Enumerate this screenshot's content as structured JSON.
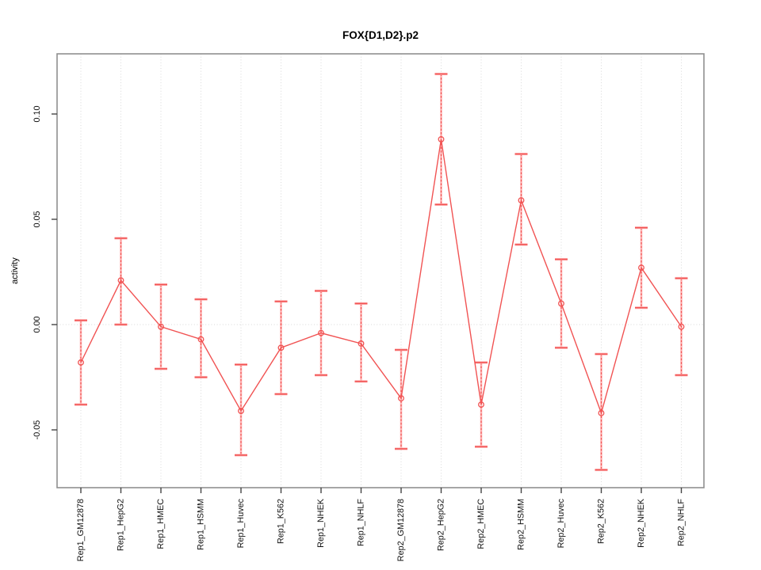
{
  "title": "FOX{D1,D2}.p2",
  "colors": {
    "series": "#f15353",
    "series_soft": "#ffb9b9",
    "grid": "#d8d8d8",
    "zero_line": "#d8d8d8",
    "box": "#8f8f8f",
    "tick": "#444444",
    "background": "#ffffff"
  },
  "chart_data": {
    "type": "line",
    "title": "FOX{D1,D2}.p2",
    "xlabel": "",
    "ylabel": "activity",
    "ylim": [
      -0.077,
      0.129
    ],
    "yticks": [
      0.1,
      0.05,
      0.0,
      -0.05
    ],
    "grid": "vertical dotted line at each category; horizontal dotted line at zero only",
    "legend_position": "none",
    "marker": "open-circle",
    "error_bars": true,
    "categories": [
      "Rep1_GM12878",
      "Rep1_HepG2",
      "Rep1_HMEC",
      "Rep1_HSMM",
      "Rep1_Huvec",
      "Rep1_K562",
      "Rep1_NHEK",
      "Rep1_NHLF",
      "Rep2_GM12878",
      "Rep2_HepG2",
      "Rep2_HMEC",
      "Rep2_HSMM",
      "Rep2_Huvec",
      "Rep2_K562",
      "Rep2_NHEK",
      "Rep2_NHLF"
    ],
    "series": [
      {
        "name": "activity",
        "values": [
          -0.018,
          0.021,
          -0.001,
          -0.007,
          -0.041,
          -0.011,
          -0.004,
          -0.009,
          -0.035,
          0.088,
          -0.038,
          0.059,
          0.01,
          -0.042,
          0.027,
          -0.001
        ],
        "upper": [
          0.002,
          0.041,
          0.019,
          0.012,
          -0.019,
          0.011,
          0.016,
          0.01,
          -0.012,
          0.119,
          -0.018,
          0.081,
          0.031,
          -0.014,
          0.046,
          0.022
        ],
        "lower": [
          -0.038,
          0.0,
          -0.021,
          -0.025,
          -0.062,
          -0.033,
          -0.024,
          -0.027,
          -0.059,
          0.057,
          -0.058,
          0.038,
          -0.011,
          -0.069,
          0.008,
          -0.024
        ]
      }
    ]
  }
}
